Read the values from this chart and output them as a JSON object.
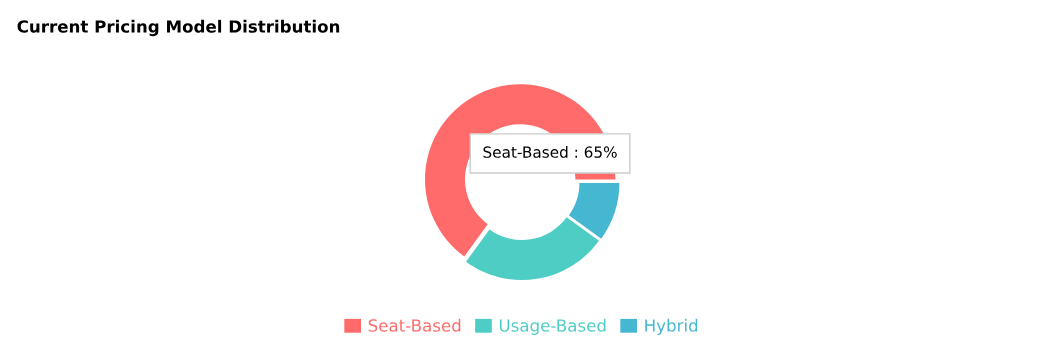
{
  "chart_data": {
    "type": "donut",
    "title": "Current Pricing Model Distribution",
    "categories": [
      "Seat-Based",
      "Usage-Based",
      "Hybrid"
    ],
    "values": [
      65,
      25,
      10
    ],
    "colors": [
      "#ff6b6b",
      "#4ecdc4",
      "#45b7d1"
    ],
    "legend": "bottom",
    "annotations": [
      "Seat-Based : 65%"
    ]
  }
}
